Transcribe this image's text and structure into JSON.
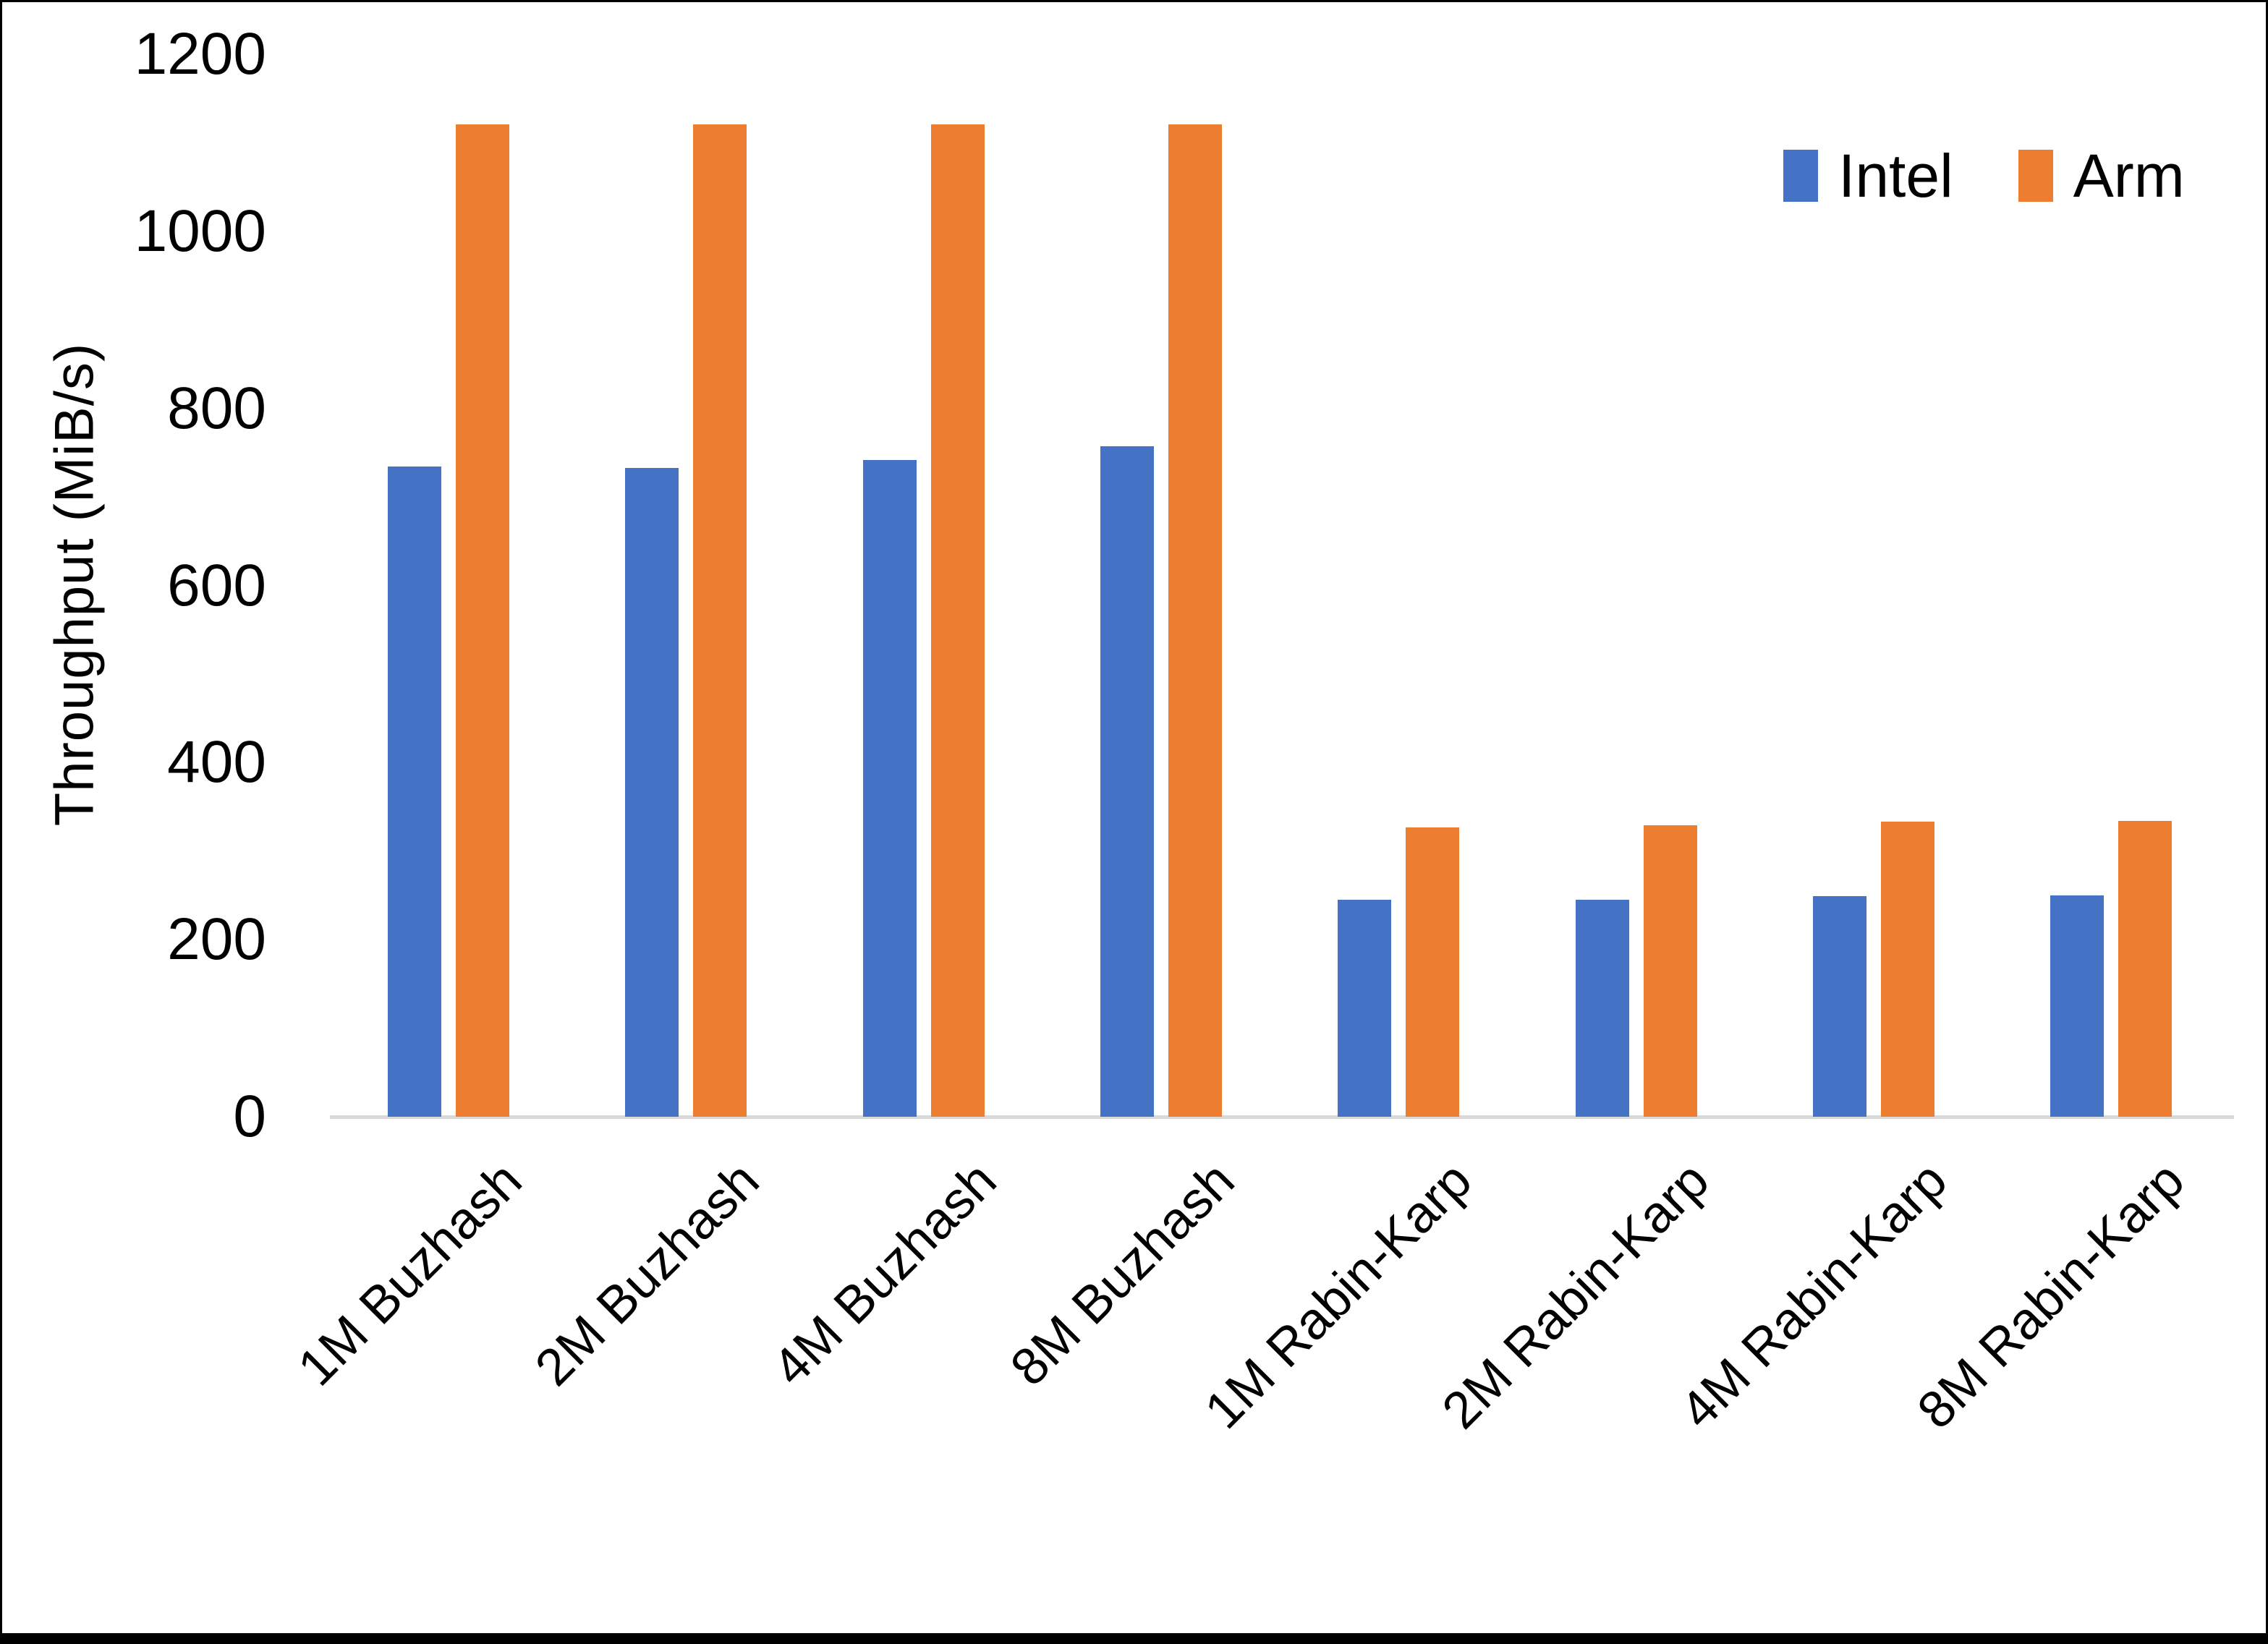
{
  "chart_data": {
    "type": "bar",
    "categories": [
      "1M Buzhash",
      "2M Buzhash",
      "4M Buzhash",
      "8M Buzhash",
      "1M Rabin-Karp",
      "2M Rabin-Karp",
      "4M Rabin-Karp",
      "8M Rabin-Karp"
    ],
    "series": [
      {
        "name": "Intel",
        "color": "#4472C4",
        "values": [
          734,
          733,
          742,
          757,
          245,
          245,
          249,
          250
        ]
      },
      {
        "name": "Arm",
        "color": "#ED7D31",
        "values": [
          1121,
          1121,
          1121,
          1121,
          327,
          329,
          333,
          334
        ]
      }
    ],
    "title": "",
    "xlabel": "",
    "ylabel": "Throughput (MiB/s)",
    "ylim": [
      0,
      1200
    ],
    "yticks": [
      0,
      200,
      400,
      600,
      800,
      1000,
      1200
    ],
    "grid": false,
    "legend_position": "top-right",
    "axis_line_color": "#d9d9d9",
    "text_color": "#000000"
  }
}
